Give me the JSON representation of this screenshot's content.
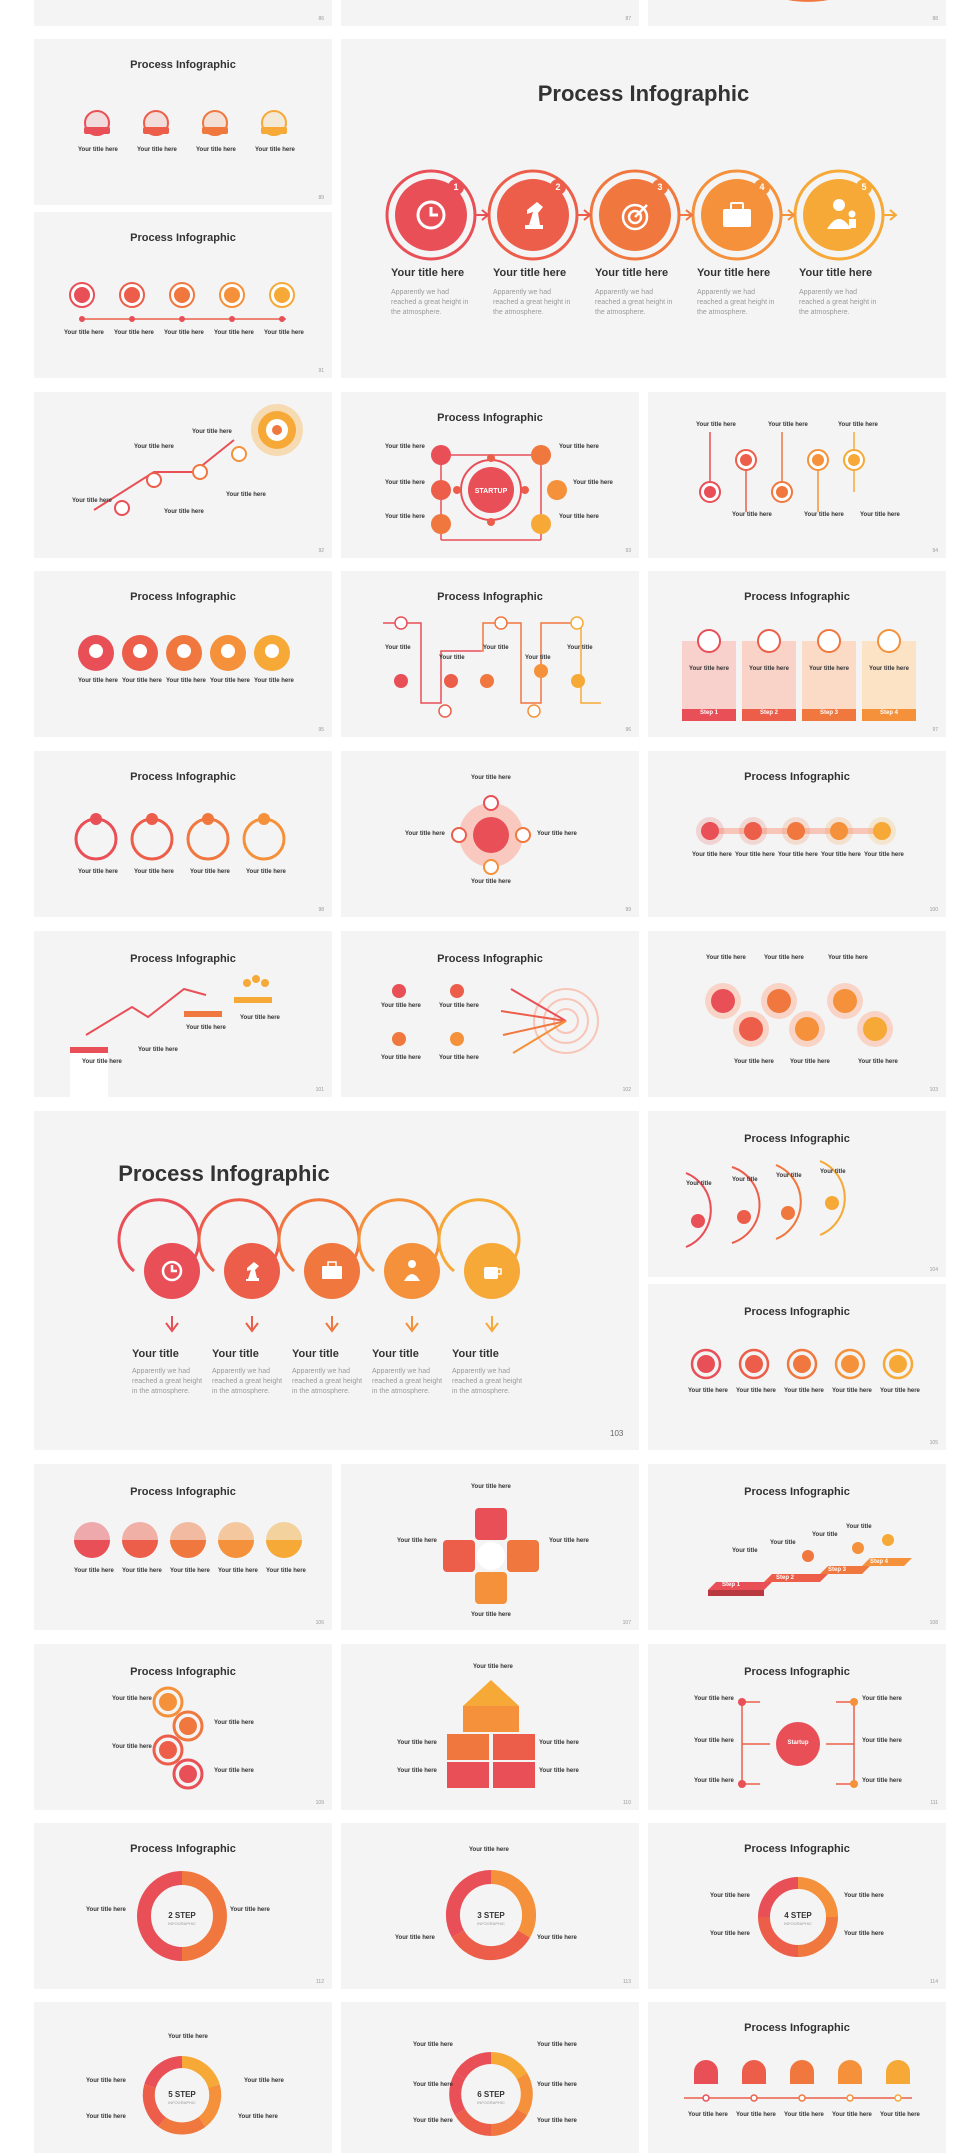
{
  "colors": {
    "red": "#e84f57",
    "red_orange": "#ec5e4a",
    "orange": "#f0773e",
    "orange_light": "#f4913a",
    "amber": "#f6a937",
    "bg": "#f4f4f4",
    "title": "#333333",
    "body": "#9a9a9a"
  },
  "common": {
    "slide_title": "Process Infographic",
    "item_title": "Your title here",
    "item_title_short": "Your title",
    "item_body": "Apparently we had reached a great height in the atmosphere.",
    "item_body_tiny": "Apparently we had reached a great height in the atmosphere."
  },
  "labels": {
    "startup": "STARTUP",
    "startup_mixed": "Startup",
    "steps": [
      "Step 1",
      "Step 2",
      "Step 3",
      "Step 4"
    ],
    "step_short": [
      "Step",
      "Step",
      "Step",
      "Step"
    ],
    "ring_2": "2 STEP",
    "ring_3": "3 STEP",
    "ring_4": "4 STEP",
    "ring_5": "5 STEP",
    "ring_6": "6 STEP",
    "ring_sub": "INFOGRAPHIC",
    "page_big_103": "103"
  },
  "icons": [
    "clock-icon",
    "chess-knight-icon",
    "target-icon",
    "briefcase-icon",
    "team-icon",
    "envelope-icon",
    "coffee-cup-icon",
    "trophy-icon"
  ]
}
